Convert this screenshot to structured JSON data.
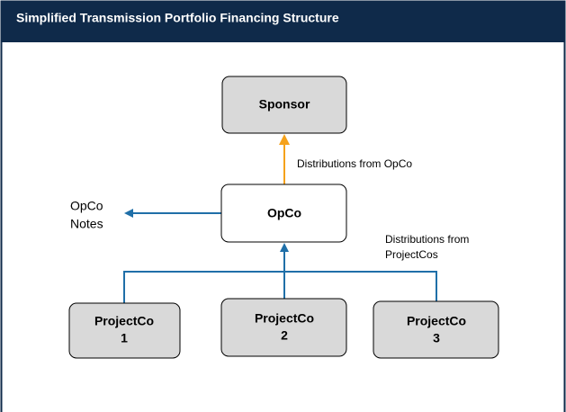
{
  "header": {
    "title": "Simplified Transmission Portfolio Financing Structure"
  },
  "nodes": [
    {
      "label": [
        "Sponsor"
      ]
    },
    {
      "label": [
        "OpCo"
      ]
    },
    {
      "label": [
        "ProjectCo",
        "1"
      ]
    },
    {
      "label": [
        "ProjectCo",
        "2"
      ]
    },
    {
      "label": [
        "ProjectCo",
        "3"
      ]
    }
  ],
  "edges": [
    {
      "label": [
        "Distributions from OpCo"
      ]
    },
    {
      "label": [
        "OpCo",
        "Notes"
      ]
    },
    {
      "label": [
        "Distributions from",
        "ProjectCos"
      ]
    }
  ]
}
